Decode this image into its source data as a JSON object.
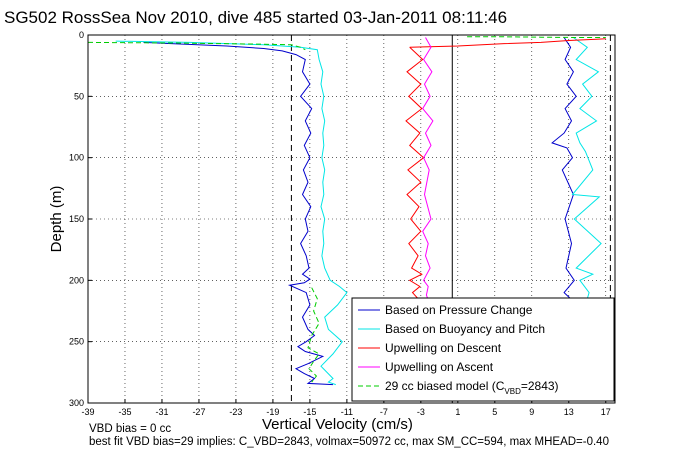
{
  "chart_data": {
    "type": "line",
    "title": "SG502 RossSea Nov 2010, dive 485 started 03-Jan-2011 08:11:46",
    "xlabel": "Vertical Velocity (cm/s)",
    "ylabel": "Depth (m)",
    "xlim": [
      -39,
      18
    ],
    "ylim": [
      300,
      0
    ],
    "y_reversed": true,
    "grid": true,
    "legend_position": "bottom-right",
    "xticks": [
      -39,
      -35,
      -31,
      -27,
      -23,
      -19,
      -15,
      -11,
      -7,
      -3,
      1,
      5,
      9,
      13,
      17
    ],
    "yticks": [
      0,
      50,
      100,
      150,
      200,
      250,
      300
    ],
    "vertical_lines": [
      {
        "x": -17.0,
        "color": "#000000",
        "style": "dashed"
      },
      {
        "x": 0.4,
        "color": "#000000",
        "style": "solid"
      },
      {
        "x": 17.5,
        "color": "#000000",
        "style": "dashed"
      }
    ],
    "series": [
      {
        "name": "Based on Pressure Change",
        "color": "#0000cc",
        "style": "solid",
        "segments": [
          {
            "x": [
              -33,
              -30,
              -24,
              -20,
              -18,
              -16.5,
              -15.5,
              -15.8,
              -15,
              -16,
              -14.8,
              -15.5,
              -14.9,
              -15.6,
              -15,
              -15.7,
              -15.2,
              -15.8,
              -14.9,
              -15.5,
              -15.2,
              -16,
              -15.4,
              -15.1,
              -15.8,
              -15,
              -15.6,
              -17.2,
              -15.4,
              -15,
              -15.8,
              -15.2,
              -14.5,
              -15.4,
              -16.3,
              -15.5,
              -13.6,
              -15.2,
              -16.5,
              -15.6,
              -14.5,
              -15.2,
              -12.5
            ],
            "y": [
              6,
              7,
              9,
              11,
              13,
              16,
              20,
              30,
              40,
              50,
              60,
              70,
              80,
              90,
              100,
              110,
              120,
              130,
              140,
              150,
              160,
              170,
              180,
              190,
              195,
              199,
              202,
              204,
              210,
              220,
              230,
              240,
              245,
              250,
              254,
              258,
              262,
              268,
              272,
              276,
              280,
              284,
              285
            ]
          },
          {
            "x": [
              12.5,
              13.2,
              12.6,
              13.5,
              12.8,
              13.8,
              12.6,
              13.3,
              12.5,
              11.2,
              12.8,
              13.4,
              12.3,
              13.5,
              12.6,
              13.3,
              12.7,
              13.6,
              12.5,
              13.2,
              12.6
            ],
            "y": [
              2,
              10,
              20,
              30,
              40,
              50,
              60,
              70,
              80,
              88,
              92,
              100,
              110,
              130,
              150,
              170,
              190,
              200,
              210,
              215,
              220
            ]
          }
        ]
      },
      {
        "name": "Based on Buoyancy and Pitch",
        "color": "#00e6e6",
        "style": "solid",
        "segments": [
          {
            "x": [
              -36,
              -28,
              -20,
              -16,
              -14.2,
              -14,
              -13.6,
              -13.8,
              -13.5,
              -13.7,
              -13.4,
              -13.6,
              -13.5,
              -13.7,
              -13.4,
              -13.6,
              -13.5,
              -13.8,
              -13.4,
              -13.6,
              -13.5,
              -13.7,
              -13.4,
              -12.8,
              -11.8,
              -11,
              -12,
              -13.4,
              -13,
              -11.5,
              -12.5,
              -13.8,
              -12.5,
              -13,
              -12.2
            ],
            "y": [
              5,
              6,
              8,
              10,
              12,
              20,
              30,
              40,
              50,
              60,
              70,
              80,
              90,
              100,
              110,
              120,
              130,
              140,
              150,
              160,
              170,
              180,
              190,
              200,
              205,
              210,
              220,
              230,
              240,
              250,
              260,
              270,
              280,
              283,
              285
            ]
          },
          {
            "x": [
              13.5,
              15,
              13.8,
              16.2,
              14.5,
              15.5,
              14.2,
              16,
              13.8,
              14.2,
              14.8,
              15.6,
              13.4,
              16.3,
              13.6,
              16.5,
              13.8,
              15.6,
              14.2,
              15.2,
              14.8
            ],
            "y": [
              2,
              10,
              20,
              30,
              40,
              50,
              60,
              70,
              80,
              88,
              95,
              110,
              130,
              132,
              150,
              170,
              190,
              195,
              200,
              210,
              220
            ]
          }
        ]
      },
      {
        "name": "Upwelling on Descent",
        "color": "#ff0000",
        "style": "solid",
        "segments": [
          {
            "x": [
              -4.2,
              -2.8,
              -4.5,
              -3.0,
              -4.3,
              -2.9,
              -4.6,
              -3.1,
              -4.2,
              -2.7,
              -4.4,
              -3.0,
              -4.5,
              -3.2,
              -4.1,
              -3.0,
              -4.3,
              -3.3,
              -4.0,
              -2.9,
              -4.2,
              -3.1,
              -3.9,
              -3.3,
              -2.8,
              -3.6
            ],
            "y": [
              10,
              20,
              30,
              40,
              50,
              60,
              70,
              80,
              90,
              100,
              110,
              120,
              130,
              140,
              150,
              160,
              170,
              180,
              190,
              195,
              200,
              205,
              210,
              215,
              218,
              220
            ]
          },
          {
            "x": [
              -4.2,
              1,
              6,
              10,
              13,
              16,
              17
            ],
            "y": [
              10,
              9,
              7,
              6,
              4.5,
              3.5,
              3
            ]
          }
        ]
      },
      {
        "name": "Upwelling on Ascent",
        "color": "#ff00ff",
        "style": "solid",
        "segments": [
          {
            "x": [
              -2.5,
              -1.9,
              -2.7,
              -1.8,
              -2.6,
              -2.0,
              -2.8,
              -1.7,
              -2.5,
              -1.9,
              -2.7,
              -2.1,
              -2.6,
              -1.9,
              -2.8,
              -2.2,
              -2.5,
              -2.0,
              -2.7,
              -2.2,
              -2.4,
              -2.1
            ],
            "y": [
              2,
              10,
              20,
              30,
              40,
              50,
              60,
              70,
              80,
              90,
              100,
              110,
              130,
              150,
              160,
              170,
              180,
              190,
              200,
              205,
              212,
              218
            ]
          }
        ]
      },
      {
        "name": "29 cc biased model (C_VBD=2843)",
        "legend_label_main": "29 cc biased model (C",
        "legend_label_sub": "VBD",
        "legend_label_end": "=2843)",
        "color": "#00cc00",
        "style": "dashed",
        "segments": [
          {
            "x": [
              -39,
              -30,
              -25,
              -20,
              -17,
              -16,
              -15.5
            ],
            "y": [
              6,
              6.5,
              7,
              7.5,
              8,
              10,
              12
            ]
          },
          {
            "x": [
              -14.8,
              -14.2,
              -14.6,
              -14.0,
              -14.8,
              -15.2,
              -14.0,
              -14.6,
              -15.1,
              -14.3,
              -14.8
            ],
            "y": [
              206,
              215,
              225,
              235,
              245,
              255,
              260,
              266,
              272,
              278,
              283
            ]
          },
          {
            "x": [
              2,
              6,
              10,
              14,
              17
            ],
            "y": [
              1.5,
              1.5,
              1.8,
              2,
              2
            ]
          }
        ]
      }
    ],
    "annotations": [
      "VBD bias = 0 cc",
      "best fit VBD bias=29 implies: C_VBD=2843, volmax=50972 cc, max SM_CC=594, max MHEAD=-0.40"
    ]
  }
}
